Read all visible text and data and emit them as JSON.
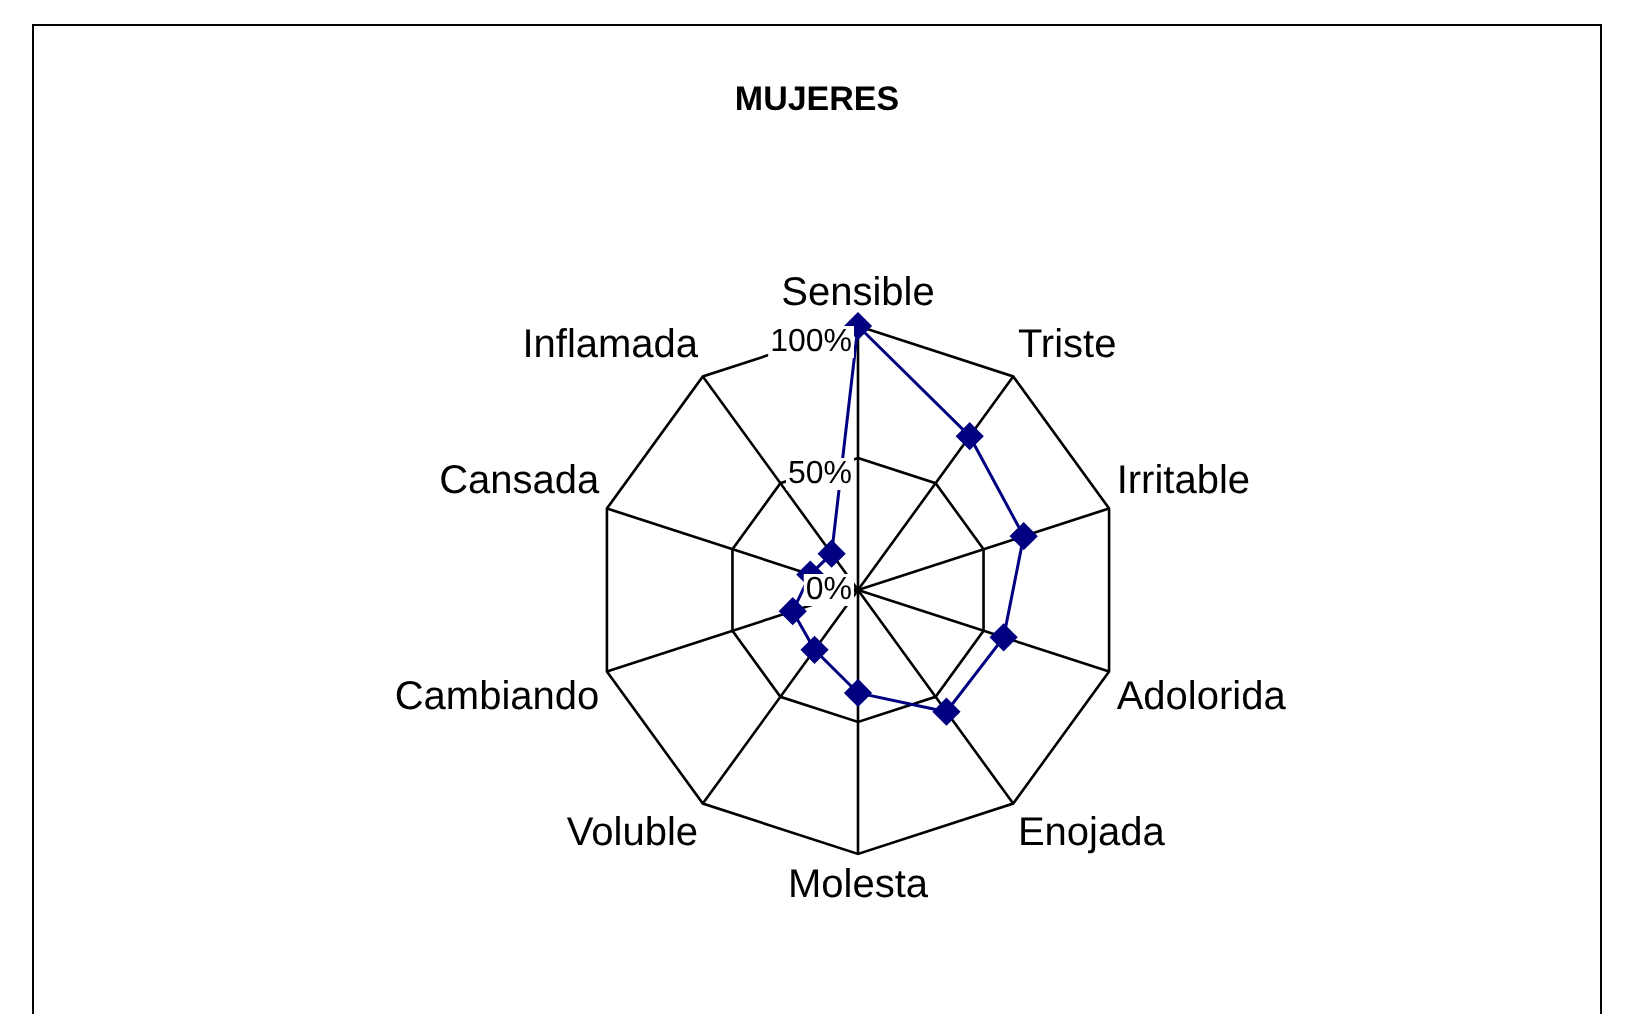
{
  "chart_data": {
    "type": "radar",
    "title": "MUJERES",
    "categories": [
      "Sensible",
      "Triste",
      "Irritable",
      "Adolorida",
      "Enojada",
      "Molesta",
      "Voluble",
      "Cambiando",
      "Cansada",
      "Inflamada"
    ],
    "series": [
      {
        "color": "#000080",
        "values": [
          100,
          72,
          66,
          58,
          57,
          39,
          28,
          26,
          19,
          17
        ]
      }
    ],
    "ylim": [
      0,
      100
    ],
    "yticks": [
      {
        "value": 0,
        "label": "0%"
      },
      {
        "value": 50,
        "label": "50%"
      },
      {
        "value": 100,
        "label": "100%"
      }
    ],
    "grid": true,
    "marker": "diamond",
    "legend": false
  }
}
